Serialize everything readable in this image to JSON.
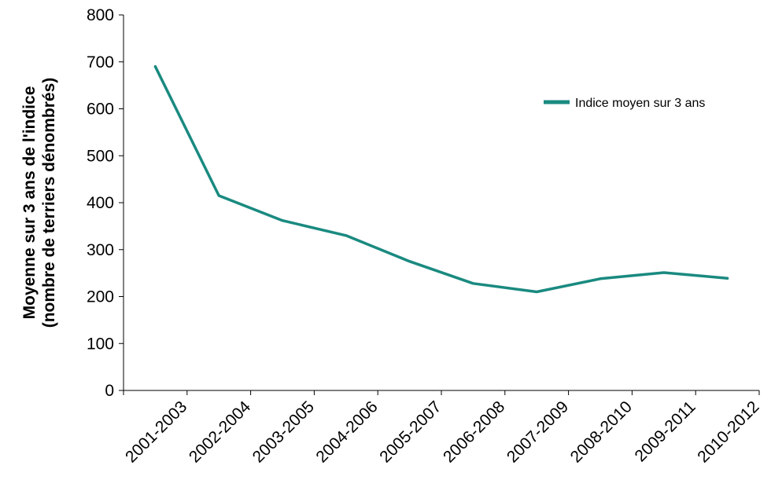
{
  "chart_data": {
    "type": "line",
    "categories": [
      "2001-2003",
      "2002-2004",
      "2003-2005",
      "2004-2006",
      "2005-2007",
      "2006-2008",
      "2007-2009",
      "2008-2010",
      "2009-2011",
      "2010-2012"
    ],
    "series": [
      {
        "name": "Indice moyen sur 3 ans",
        "values": [
          690,
          415,
          362,
          330,
          275,
          228,
          210,
          238,
          251,
          239
        ],
        "color": "#1a8a80"
      }
    ],
    "ylabel_line1": "Moyenne sur 3 ans de l'indice",
    "ylabel_line2": "(nombre de terriers dénombrés)",
    "ylim": [
      0,
      800
    ],
    "yticks": [
      0,
      100,
      200,
      300,
      400,
      500,
      600,
      700,
      800
    ],
    "ytick_labels": [
      "0",
      "100",
      "200",
      "300",
      "400",
      "500",
      "600",
      "700",
      "800"
    ],
    "grid": false,
    "legend_position": "top-right"
  }
}
